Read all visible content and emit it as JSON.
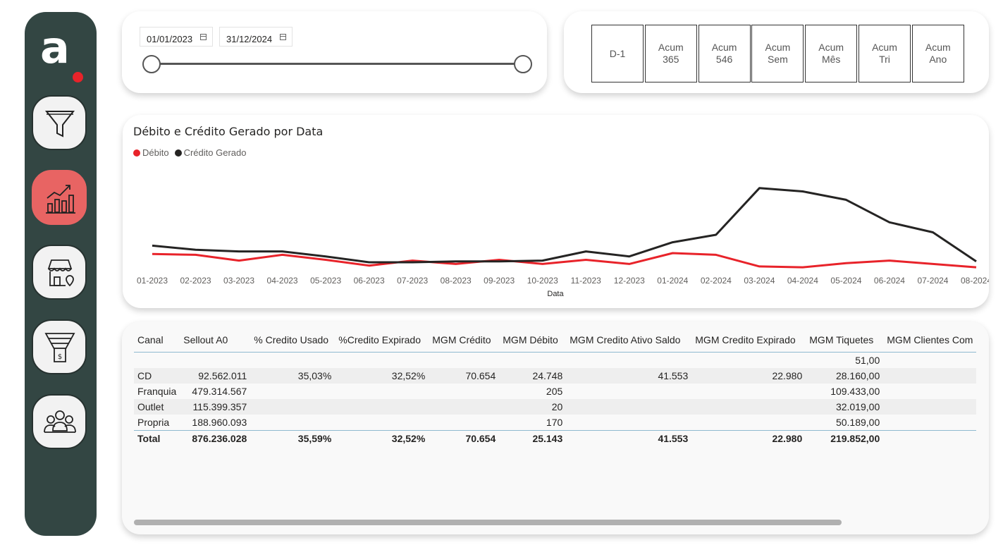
{
  "logo": {
    "text": "a"
  },
  "nav": [
    {
      "icon": "funnel-icon"
    },
    {
      "icon": "growth-chart-icon",
      "active": true
    },
    {
      "icon": "store-location-icon"
    },
    {
      "icon": "sales-funnel-icon"
    },
    {
      "icon": "users-group-icon"
    }
  ],
  "date_filter": {
    "start": "01/01/2023",
    "end": "31/12/2024"
  },
  "period_buttons": [
    "D-1",
    "Acum\n365",
    "Acum\n546",
    "Acum\nSem",
    "Acum\nMês",
    "Acum\nTri",
    "Acum\nAno"
  ],
  "chart_data": {
    "type": "line",
    "title": "Débito e Crédito Gerado por Data",
    "xlabel": "Data",
    "ylabel": "",
    "categories": [
      "01-2023",
      "02-2023",
      "03-2023",
      "04-2023",
      "05-2023",
      "06-2023",
      "07-2023",
      "08-2023",
      "09-2023",
      "10-2023",
      "11-2023",
      "12-2023",
      "01-2024",
      "02-2024",
      "03-2024",
      "04-2024",
      "05-2024",
      "06-2024",
      "07-2024",
      "08-2024"
    ],
    "series": [
      {
        "name": "Débito",
        "color": "#e8232a",
        "values": [
          21,
          20,
          13,
          20,
          14,
          7,
          13,
          9,
          14,
          9,
          14,
          9,
          22,
          20,
          6,
          5,
          10,
          13,
          9,
          5
        ]
      },
      {
        "name": "Crédito Gerado",
        "color": "#252423",
        "values": [
          31,
          26,
          24,
          24,
          18,
          11,
          11,
          12,
          12,
          13,
          24,
          18,
          35,
          44,
          100,
          96,
          86,
          59,
          47,
          12
        ]
      }
    ],
    "ylim": [
      0,
      110
    ],
    "legend": "top-left",
    "grid": false
  },
  "table": {
    "columns": [
      "Canal",
      "Sellout A0",
      "% Credito Usado",
      "%Credito Expirado",
      "MGM Crédito",
      "MGM Débito",
      "MGM Credito Ativo Saldo",
      "MGM Credito Expirado",
      "MGM Tiquetes",
      "MGM Clientes Com"
    ],
    "rows": [
      [
        "",
        "",
        "",
        "",
        "",
        "",
        "",
        "",
        "51,00",
        ""
      ],
      [
        "CD",
        "92.562.011",
        "35,03%",
        "32,52%",
        "70.654",
        "24.748",
        "41.553",
        "22.980",
        "28.160,00",
        ""
      ],
      [
        "Franquia",
        "479.314.567",
        "",
        "",
        "",
        "205",
        "",
        "",
        "109.433,00",
        ""
      ],
      [
        "Outlet",
        "115.399.357",
        "",
        "",
        "",
        "20",
        "",
        "",
        "32.019,00",
        ""
      ],
      [
        "Propria",
        "188.960.093",
        "",
        "",
        "",
        "170",
        "",
        "",
        "50.189,00",
        ""
      ]
    ],
    "total": [
      "Total",
      "876.236.028",
      "35,59%",
      "32,52%",
      "70.654",
      "25.143",
      "41.553",
      "22.980",
      "219.852,00",
      ""
    ]
  }
}
